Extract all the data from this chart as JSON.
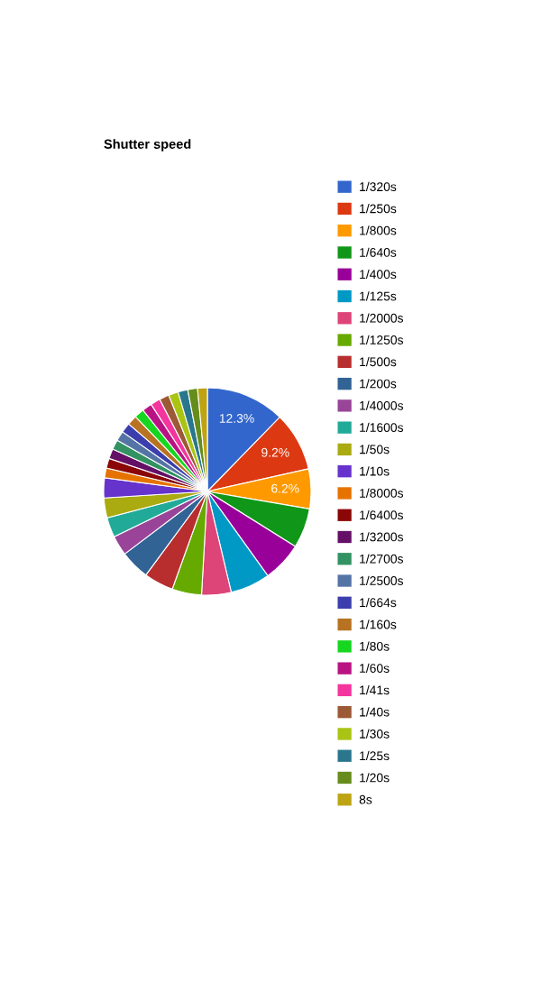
{
  "chart_data": {
    "type": "pie",
    "title": "Shutter speed",
    "categories": [
      "1/320s",
      "1/250s",
      "1/800s",
      "1/640s",
      "1/400s",
      "1/125s",
      "1/2000s",
      "1/1250s",
      "1/500s",
      "1/200s",
      "1/4000s",
      "1/1600s",
      "1/50s",
      "1/10s",
      "1/8000s",
      "1/6400s",
      "1/3200s",
      "1/2700s",
      "1/2500s",
      "1/664s",
      "1/160s",
      "1/80s",
      "1/60s",
      "1/41s",
      "1/40s",
      "1/30s",
      "1/25s",
      "1/20s",
      "8s"
    ],
    "values": [
      12.3,
      9.2,
      6.2,
      6.2,
      6.2,
      6.2,
      4.6,
      4.6,
      4.6,
      4.6,
      3.1,
      3.1,
      3.1,
      3.1,
      1.53,
      1.53,
      1.53,
      1.53,
      1.53,
      1.53,
      1.53,
      1.53,
      1.53,
      1.53,
      1.52,
      1.52,
      1.52,
      1.52,
      1.52
    ],
    "value_labels": [
      "12.3%",
      "9.2%",
      "6.2%",
      null,
      null,
      null,
      null,
      null,
      null,
      null,
      null,
      null,
      null,
      null,
      null,
      null,
      null,
      null,
      null,
      null,
      null,
      null,
      null,
      null,
      null,
      null,
      null,
      null,
      null
    ],
    "colors": [
      "#3366cc",
      "#dc3912",
      "#ff9900",
      "#109618",
      "#990099",
      "#0099c6",
      "#dd4477",
      "#66aa00",
      "#b82e2e",
      "#316395",
      "#994499",
      "#22aa99",
      "#aaaa11",
      "#6633cc",
      "#e67300",
      "#8b0707",
      "#651067",
      "#329262",
      "#5574a6",
      "#3b3eac",
      "#b77322",
      "#16d620",
      "#b91383",
      "#f4359e",
      "#9c5935",
      "#a9c413",
      "#2a778d",
      "#668d1c",
      "#bea413"
    ],
    "legend": "right"
  }
}
